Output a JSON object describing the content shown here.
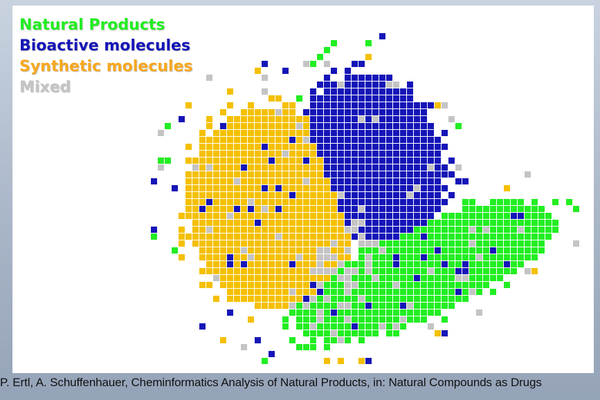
{
  "legend": [
    {
      "label": "Natural Products",
      "color": "#22ee22"
    },
    {
      "label": "Bioactive molecules",
      "color": "#1515b8"
    },
    {
      "label": "Synthetic molecules",
      "color": "#f8a81e"
    },
    {
      "label": "Mixed",
      "color": "#c4c4c4"
    }
  ],
  "cell_colors": {
    "natural": "#22ee22",
    "bioactive": "#1515b8",
    "synthetic": "#f5c000",
    "mixed": "#c4c4c4"
  },
  "caption": "P. Ertl, A. Schuffenhauer, Cheminformatics Analysis of Natural Products, in: Natural Compounds as Drugs"
}
